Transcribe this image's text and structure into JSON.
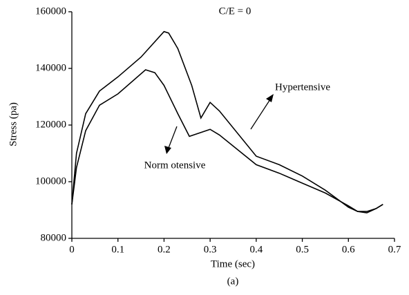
{
  "chart_data": {
    "type": "line",
    "annotation": "C/E = 0",
    "caption": "(a)",
    "xlabel": "Time (sec)",
    "ylabel": "Stress (pa)",
    "xlim": [
      0,
      0.7
    ],
    "xticks": [
      0,
      0.1,
      0.2,
      0.3,
      0.4,
      0.5,
      0.6,
      0.7
    ],
    "ylim": [
      80000,
      160000
    ],
    "yticks": [
      80000,
      100000,
      120000,
      140000,
      160000
    ],
    "series": [
      {
        "name": "Hypertensive",
        "color": "#000000",
        "x": [
          0,
          0.01,
          0.03,
          0.06,
          0.1,
          0.15,
          0.2,
          0.21,
          0.23,
          0.26,
          0.28,
          0.3,
          0.32,
          0.4,
          0.45,
          0.5,
          0.55,
          0.6,
          0.62,
          0.64,
          0.66,
          0.675
        ],
        "values": [
          92000,
          110000,
          124000,
          132000,
          137000,
          144000,
          153000,
          152500,
          147000,
          134000,
          122500,
          128000,
          125000,
          109000,
          106000,
          102000,
          97000,
          91000,
          89500,
          89000,
          90500,
          92000
        ]
      },
      {
        "name": "Norm otensive",
        "color": "#000000",
        "x": [
          0,
          0.01,
          0.03,
          0.06,
          0.1,
          0.16,
          0.18,
          0.2,
          0.23,
          0.255,
          0.3,
          0.32,
          0.4,
          0.45,
          0.5,
          0.55,
          0.6,
          0.62,
          0.64,
          0.66,
          0.675
        ],
        "values": [
          92000,
          105000,
          118000,
          127000,
          131000,
          139500,
          138500,
          134000,
          124000,
          116000,
          118500,
          116500,
          106000,
          103000,
          99500,
          96000,
          91500,
          89500,
          89500,
          90500,
          92000
        ]
      }
    ]
  }
}
